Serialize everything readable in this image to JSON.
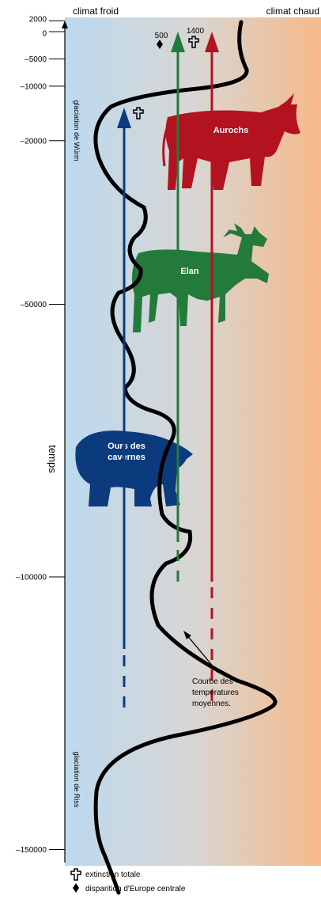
{
  "header": {
    "left": "climat froid",
    "right": "climat chaud"
  },
  "time_axis": {
    "label": "temps",
    "ticks": [
      {
        "value": 2000,
        "label": "2000"
      },
      {
        "value": 0,
        "label": "0"
      },
      {
        "value": -5000,
        "label": "–5000"
      },
      {
        "value": -10000,
        "label": "–10000"
      },
      {
        "value": -20000,
        "label": "–20000"
      },
      {
        "value": -50000,
        "label": "–50000"
      },
      {
        "value": -100000,
        "label": "–100000"
      },
      {
        "value": -150000,
        "label": "–150000"
      }
    ]
  },
  "periods": [
    "glaciation de Würm",
    "glaciation de Riss"
  ],
  "animals": [
    {
      "label": "Aurochs",
      "date": "1400"
    },
    {
      "label": "Elan",
      "date": "500"
    },
    {
      "label": "Ours des cavernes"
    }
  ],
  "annotation": [
    "Courbe des",
    "températures",
    "moyennes."
  ],
  "legend": [
    "extinction totale",
    "disparition d'Europe centrale"
  ]
}
